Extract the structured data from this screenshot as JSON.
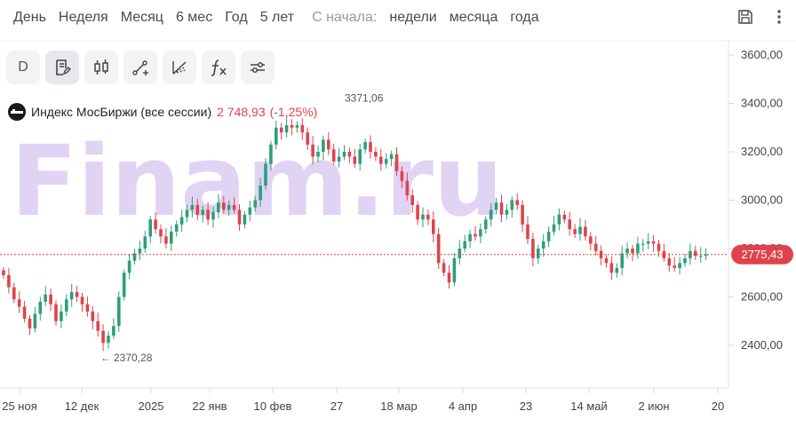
{
  "periods": {
    "items": [
      "День",
      "Неделя",
      "Месяц",
      "6 мес",
      "Год",
      "5 лет"
    ],
    "since_label": "С начала:",
    "since_items": [
      "недели",
      "месяца",
      "года"
    ]
  },
  "toolbar": {
    "interval_label": "D"
  },
  "legend": {
    "name": "Индекс МосБиржи (все сессии)",
    "value": "2 748,93",
    "change": "(-1,25%)"
  },
  "watermark": "Finam.ru",
  "colors": {
    "up": "#2e9e7c",
    "down": "#e0424d",
    "price_line": "#e0424d",
    "watermark": "#e1d3f3"
  },
  "chart_data": {
    "type": "candlestick",
    "y_axis": {
      "range": [
        2230,
        3650
      ],
      "ticks": [
        2400,
        2600,
        2800,
        3000,
        3200,
        3400,
        3600
      ],
      "tick_labels": [
        "2400,00",
        "2600,00",
        "2800,00",
        "3000,00",
        "3200,00",
        "3400,00",
        "3600,00"
      ],
      "position": "right"
    },
    "x_axis": {
      "tick_labels": [
        "25 ноя",
        "12 дек",
        "2025",
        "22 янв",
        "10 фев",
        "27",
        "18 мар",
        "4 апр",
        "23",
        "14 май",
        "2 июн",
        "20"
      ]
    },
    "current_price": {
      "value": 2775.43,
      "label": "2775,43"
    },
    "annotations": [
      {
        "text": "3371,06",
        "value": 3371.06,
        "type": "max"
      },
      {
        "text": "2370,28",
        "value": 2370.28,
        "type": "min"
      }
    ],
    "closes": [
      2690,
      2640,
      2590,
      2560,
      2510,
      2470,
      2530,
      2580,
      2610,
      2570,
      2500,
      2540,
      2590,
      2620,
      2600,
      2570,
      2540,
      2500,
      2460,
      2410,
      2440,
      2480,
      2600,
      2700,
      2750,
      2780,
      2800,
      2850,
      2920,
      2880,
      2850,
      2820,
      2870,
      2900,
      2930,
      2960,
      2980,
      2940,
      2960,
      2920,
      2950,
      2990,
      2960,
      2980,
      2960,
      2900,
      2940,
      2970,
      3000,
      3060,
      3150,
      3230,
      3300,
      3280,
      3310,
      3300,
      3310,
      3280,
      3230,
      3180,
      3200,
      3250,
      3210,
      3160,
      3180,
      3200,
      3180,
      3150,
      3210,
      3240,
      3200,
      3180,
      3150,
      3170,
      3190,
      3120,
      3080,
      3020,
      2980,
      2920,
      2940,
      2920,
      2860,
      2740,
      2700,
      2660,
      2760,
      2800,
      2830,
      2860,
      2850,
      2880,
      2920,
      2960,
      2990,
      2940,
      2960,
      3000,
      2980,
      2900,
      2840,
      2760,
      2800,
      2830,
      2870,
      2900,
      2940,
      2920,
      2880,
      2860,
      2890,
      2850,
      2820,
      2790,
      2760,
      2740,
      2700,
      2720,
      2780,
      2800,
      2780,
      2820,
      2820,
      2830,
      2820,
      2790,
      2760,
      2730,
      2720,
      2740,
      2760,
      2790,
      2770,
      2770,
      2775
    ]
  }
}
